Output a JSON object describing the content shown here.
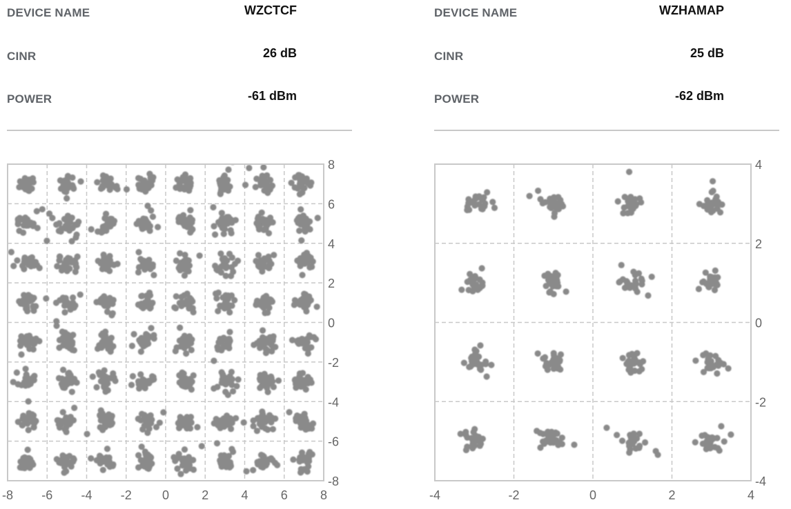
{
  "devices": [
    {
      "labels": {
        "device_name": "DEVICE NAME",
        "cinr": "CINR",
        "power": "POWER"
      },
      "device_name": "WZCTCF",
      "cinr": "26 dB",
      "power": "-61 dBm"
    },
    {
      "labels": {
        "device_name": "DEVICE NAME",
        "cinr": "CINR",
        "power": "POWER"
      },
      "device_name": "WZHAMAP",
      "cinr": "25 dB",
      "power": "-62 dBm"
    }
  ],
  "chart_data": [
    {
      "type": "scatter",
      "title": "",
      "xlabel": "",
      "ylabel": "",
      "xlim": [
        -8,
        8
      ],
      "ylim": [
        -8,
        8
      ],
      "xticks": [
        "-8",
        "-6",
        "-4",
        "-2",
        "0",
        "2",
        "4",
        "6",
        "8"
      ],
      "yticks": [
        "8",
        "6",
        "4",
        "2",
        "0",
        "-2",
        "-4",
        "-6",
        "-8"
      ],
      "y_axis_position": "right",
      "grid": true,
      "constellation_points_x": [
        -7,
        -5,
        -3,
        -1,
        1,
        3,
        5,
        7
      ],
      "constellation_points_y": [
        7,
        5,
        3,
        1,
        -1,
        -3,
        -5,
        -7
      ],
      "cluster_spread": 0.22,
      "point_color": "#8a8a8a"
    },
    {
      "type": "scatter",
      "title": "",
      "xlabel": "",
      "ylabel": "",
      "xlim": [
        -4,
        4
      ],
      "ylim": [
        -4,
        4
      ],
      "xticks": [
        "-4",
        "-2",
        "0",
        "2",
        "4"
      ],
      "yticks": [
        "4",
        "2",
        "0",
        "-2",
        "-4"
      ],
      "y_axis_position": "right",
      "grid": true,
      "constellation_points_x": [
        -3,
        -1,
        1,
        3
      ],
      "constellation_points_y": [
        3,
        1,
        -1,
        -3
      ],
      "cluster_spread": 0.13,
      "point_color": "#8a8a8a"
    }
  ]
}
